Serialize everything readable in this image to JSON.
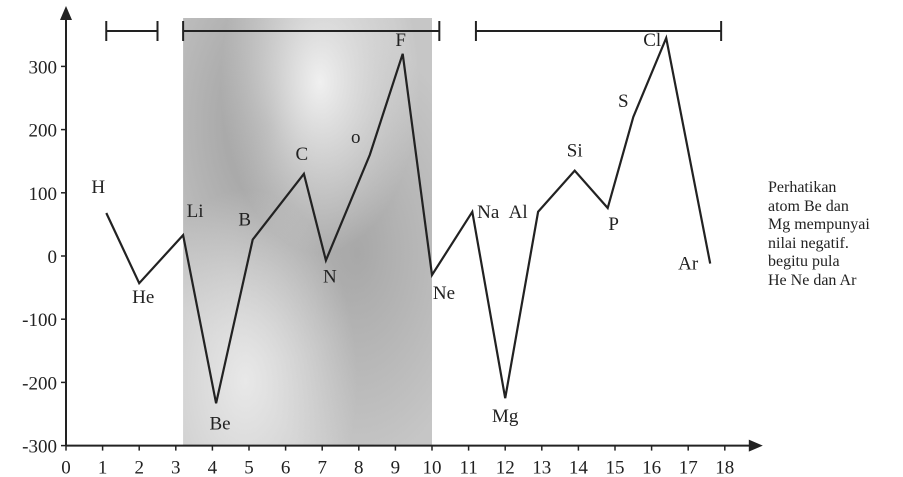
{
  "chart_data": {
    "type": "line",
    "x_ticks": [
      0,
      1,
      2,
      3,
      4,
      5,
      6,
      7,
      8,
      9,
      10,
      11,
      12,
      13,
      14,
      15,
      16,
      17,
      18
    ],
    "y_ticks": [
      -300,
      -200,
      -100,
      0,
      100,
      200,
      300
    ],
    "xlim": [
      0,
      18
    ],
    "ylim": [
      -300,
      360
    ],
    "grid": false,
    "points": [
      {
        "label": "H",
        "x": 1.1,
        "y": 68
      },
      {
        "label": "He",
        "x": 2.0,
        "y": -43
      },
      {
        "label": "Li",
        "x": 3.2,
        "y": 33
      },
      {
        "label": "Be",
        "x": 4.1,
        "y": -233
      },
      {
        "label": "B",
        "x": 5.1,
        "y": 26
      },
      {
        "label": "C",
        "x": 6.5,
        "y": 130
      },
      {
        "label": "N",
        "x": 7.1,
        "y": -7
      },
      {
        "label": "o",
        "x": 8.3,
        "y": 160
      },
      {
        "label": "F",
        "x": 9.2,
        "y": 320
      },
      {
        "label": "Ne",
        "x": 10.0,
        "y": -30
      },
      {
        "label": "Na",
        "x": 11.1,
        "y": 70
      },
      {
        "label": "Mg",
        "x": 12.0,
        "y": -225
      },
      {
        "label": "Al",
        "x": 12.9,
        "y": 70
      },
      {
        "label": "Si",
        "x": 13.9,
        "y": 135
      },
      {
        "label": "P",
        "x": 14.8,
        "y": 76
      },
      {
        "label": "S",
        "x": 15.5,
        "y": 220
      },
      {
        "label": "Cl",
        "x": 16.4,
        "y": 345
      },
      {
        "label": "Ar",
        "x": 17.6,
        "y": -12
      }
    ],
    "shaded_region": {
      "x_from": 3.2,
      "x_to": 10.0
    },
    "group_brackets": [
      {
        "x_from": 1.1,
        "x_to": 2.5
      },
      {
        "x_from": 3.2,
        "x_to": 10.2
      },
      {
        "x_from": 11.2,
        "x_to": 17.9
      }
    ]
  },
  "note": {
    "lines": [
      "Perhatikan",
      "atom Be dan",
      "Mg mempunyai",
      "nilai negatif.",
      "begitu pula",
      "He Ne dan Ar"
    ]
  }
}
